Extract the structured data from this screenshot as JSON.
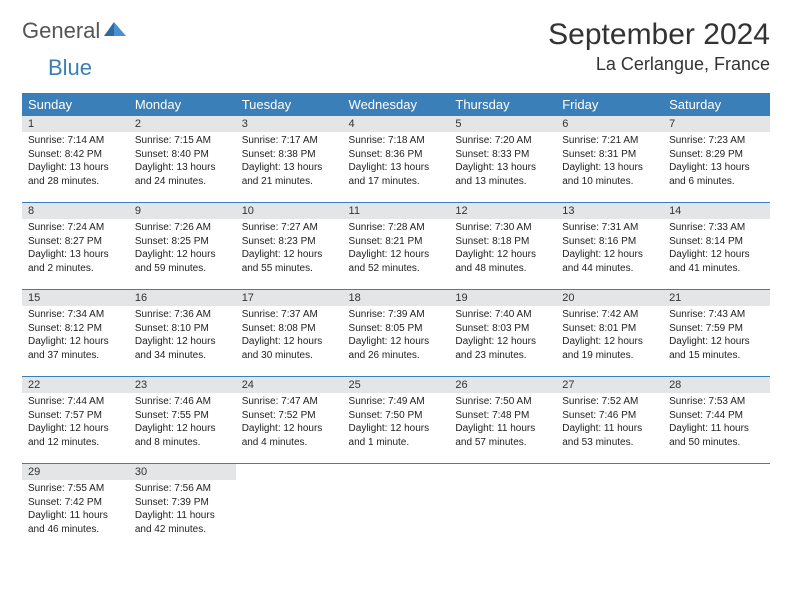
{
  "brand": {
    "part1": "General",
    "part2": "Blue"
  },
  "title": "September 2024",
  "location": "La Cerlangue, France",
  "colors": {
    "header_bg": "#3a7fb8",
    "header_fg": "#ffffff",
    "daynum_bg": "#e3e5e7",
    "rule": "#3a7fb8",
    "text": "#222222"
  },
  "weekdays": [
    "Sunday",
    "Monday",
    "Tuesday",
    "Wednesday",
    "Thursday",
    "Friday",
    "Saturday"
  ],
  "weeks": [
    [
      {
        "n": "1",
        "sr": "7:14 AM",
        "ss": "8:42 PM",
        "dl": "13 hours and 28 minutes."
      },
      {
        "n": "2",
        "sr": "7:15 AM",
        "ss": "8:40 PM",
        "dl": "13 hours and 24 minutes."
      },
      {
        "n": "3",
        "sr": "7:17 AM",
        "ss": "8:38 PM",
        "dl": "13 hours and 21 minutes."
      },
      {
        "n": "4",
        "sr": "7:18 AM",
        "ss": "8:36 PM",
        "dl": "13 hours and 17 minutes."
      },
      {
        "n": "5",
        "sr": "7:20 AM",
        "ss": "8:33 PM",
        "dl": "13 hours and 13 minutes."
      },
      {
        "n": "6",
        "sr": "7:21 AM",
        "ss": "8:31 PM",
        "dl": "13 hours and 10 minutes."
      },
      {
        "n": "7",
        "sr": "7:23 AM",
        "ss": "8:29 PM",
        "dl": "13 hours and 6 minutes."
      }
    ],
    [
      {
        "n": "8",
        "sr": "7:24 AM",
        "ss": "8:27 PM",
        "dl": "13 hours and 2 minutes."
      },
      {
        "n": "9",
        "sr": "7:26 AM",
        "ss": "8:25 PM",
        "dl": "12 hours and 59 minutes."
      },
      {
        "n": "10",
        "sr": "7:27 AM",
        "ss": "8:23 PM",
        "dl": "12 hours and 55 minutes."
      },
      {
        "n": "11",
        "sr": "7:28 AM",
        "ss": "8:21 PM",
        "dl": "12 hours and 52 minutes."
      },
      {
        "n": "12",
        "sr": "7:30 AM",
        "ss": "8:18 PM",
        "dl": "12 hours and 48 minutes."
      },
      {
        "n": "13",
        "sr": "7:31 AM",
        "ss": "8:16 PM",
        "dl": "12 hours and 44 minutes."
      },
      {
        "n": "14",
        "sr": "7:33 AM",
        "ss": "8:14 PM",
        "dl": "12 hours and 41 minutes."
      }
    ],
    [
      {
        "n": "15",
        "sr": "7:34 AM",
        "ss": "8:12 PM",
        "dl": "12 hours and 37 minutes."
      },
      {
        "n": "16",
        "sr": "7:36 AM",
        "ss": "8:10 PM",
        "dl": "12 hours and 34 minutes."
      },
      {
        "n": "17",
        "sr": "7:37 AM",
        "ss": "8:08 PM",
        "dl": "12 hours and 30 minutes."
      },
      {
        "n": "18",
        "sr": "7:39 AM",
        "ss": "8:05 PM",
        "dl": "12 hours and 26 minutes."
      },
      {
        "n": "19",
        "sr": "7:40 AM",
        "ss": "8:03 PM",
        "dl": "12 hours and 23 minutes."
      },
      {
        "n": "20",
        "sr": "7:42 AM",
        "ss": "8:01 PM",
        "dl": "12 hours and 19 minutes."
      },
      {
        "n": "21",
        "sr": "7:43 AM",
        "ss": "7:59 PM",
        "dl": "12 hours and 15 minutes."
      }
    ],
    [
      {
        "n": "22",
        "sr": "7:44 AM",
        "ss": "7:57 PM",
        "dl": "12 hours and 12 minutes."
      },
      {
        "n": "23",
        "sr": "7:46 AM",
        "ss": "7:55 PM",
        "dl": "12 hours and 8 minutes."
      },
      {
        "n": "24",
        "sr": "7:47 AM",
        "ss": "7:52 PM",
        "dl": "12 hours and 4 minutes."
      },
      {
        "n": "25",
        "sr": "7:49 AM",
        "ss": "7:50 PM",
        "dl": "12 hours and 1 minute."
      },
      {
        "n": "26",
        "sr": "7:50 AM",
        "ss": "7:48 PM",
        "dl": "11 hours and 57 minutes."
      },
      {
        "n": "27",
        "sr": "7:52 AM",
        "ss": "7:46 PM",
        "dl": "11 hours and 53 minutes."
      },
      {
        "n": "28",
        "sr": "7:53 AM",
        "ss": "7:44 PM",
        "dl": "11 hours and 50 minutes."
      }
    ],
    [
      {
        "n": "29",
        "sr": "7:55 AM",
        "ss": "7:42 PM",
        "dl": "11 hours and 46 minutes."
      },
      {
        "n": "30",
        "sr": "7:56 AM",
        "ss": "7:39 PM",
        "dl": "11 hours and 42 minutes."
      },
      null,
      null,
      null,
      null,
      null
    ]
  ],
  "labels": {
    "sunrise": "Sunrise:",
    "sunset": "Sunset:",
    "daylight": "Daylight:"
  }
}
